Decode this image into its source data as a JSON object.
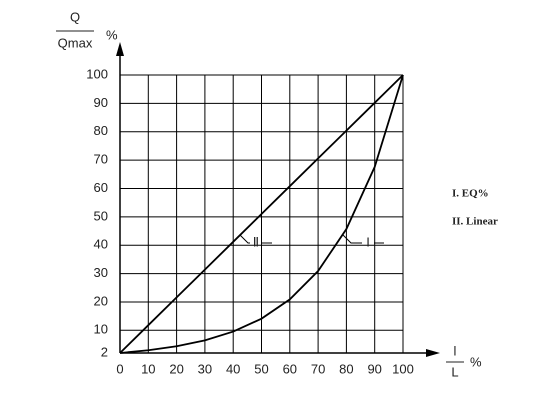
{
  "chart_data": {
    "type": "line",
    "y_label": {
      "numerator": "Q",
      "denominator": "Qmax",
      "unit": "%"
    },
    "x_label": {
      "numerator": "l",
      "denominator": "L",
      "unit": "%"
    },
    "x": [
      0,
      10,
      20,
      30,
      40,
      50,
      60,
      70,
      80,
      90,
      100
    ],
    "series": [
      {
        "name": "I. EQ%",
        "label": "I",
        "color": "#000000",
        "values": [
          2,
          2.96,
          4.37,
          6.47,
          9.56,
          14.1,
          20.9,
          30.9,
          45.7,
          67.6,
          100
        ]
      },
      {
        "name": "II. Linear",
        "label": "Ⅱ",
        "color": "#000000",
        "values": [
          2,
          11.8,
          21.6,
          31.4,
          41.2,
          51,
          60.8,
          70.6,
          80.4,
          90.2,
          100
        ]
      }
    ],
    "xlim": [
      0,
      100
    ],
    "ylim": [
      2,
      100
    ],
    "xticks": [
      0,
      10,
      20,
      30,
      40,
      50,
      60,
      70,
      80,
      90,
      100
    ],
    "yticks": [
      2,
      10,
      20,
      30,
      40,
      50,
      60,
      70,
      80,
      90,
      100
    ],
    "grid": true
  }
}
